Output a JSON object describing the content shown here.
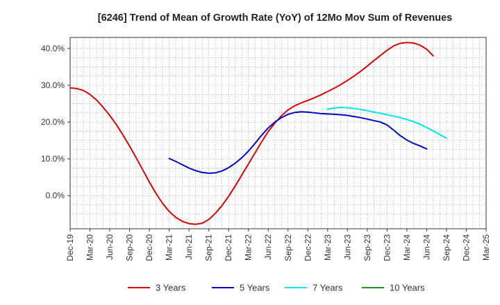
{
  "chart_data": {
    "type": "line",
    "title": "[6246]  Trend of Mean of Growth Rate (YoY) of 12Mo Mov Sum of Revenues",
    "xlabel": "",
    "ylabel": "",
    "ylim": [
      -9,
      43
    ],
    "yticks": [
      0,
      10,
      20,
      30,
      40
    ],
    "ytick_labels": [
      "0.0%",
      "10.0%",
      "20.0%",
      "30.0%",
      "40.0%"
    ],
    "x_start": "Dec-19",
    "x_end": "Mar-25",
    "xtick_labels": [
      "Dec-19",
      "Mar-20",
      "Jun-20",
      "Sep-20",
      "Dec-20",
      "Mar-21",
      "Jun-21",
      "Sep-21",
      "Dec-21",
      "Mar-22",
      "Jun-22",
      "Sep-22",
      "Dec-22",
      "Mar-23",
      "Jun-23",
      "Sep-23",
      "Dec-23",
      "Mar-24",
      "Jun-24",
      "Sep-24",
      "Dec-24",
      "Mar-25"
    ],
    "grid": true,
    "legend_position": "bottom",
    "series": [
      {
        "name": "3 Years",
        "color": "#dd0000",
        "start_month": 0,
        "values": [
          29.3,
          29.1,
          28.6,
          27.5,
          26.0,
          24.0,
          21.8,
          19.3,
          16.5,
          13.5,
          10.3,
          7.0,
          3.7,
          0.6,
          -2.1,
          -4.3,
          -5.9,
          -7.0,
          -7.6,
          -7.8,
          -7.5,
          -6.5,
          -4.8,
          -2.7,
          -0.2,
          2.6,
          5.6,
          8.6,
          11.6,
          14.6,
          17.4,
          19.7,
          21.7,
          23.3,
          24.4,
          25.2,
          25.9,
          26.6,
          27.4,
          28.3,
          29.2,
          30.2,
          31.3,
          32.5,
          33.8,
          35.2,
          36.7,
          38.1,
          39.5,
          40.7,
          41.4,
          41.6,
          41.5,
          40.9,
          39.8,
          38.0
        ]
      },
      {
        "name": "5 Years",
        "color": "#0000cc",
        "start_month": 15,
        "values": [
          10.1,
          9.3,
          8.4,
          7.5,
          6.8,
          6.3,
          6.1,
          6.2,
          6.7,
          7.6,
          8.8,
          10.3,
          12.1,
          14.2,
          16.4,
          18.4,
          20.0,
          21.2,
          22.1,
          22.6,
          22.8,
          22.7,
          22.5,
          22.3,
          22.2,
          22.1,
          22.0,
          21.8,
          21.5,
          21.2,
          20.8,
          20.4,
          20.0,
          19.2,
          17.8,
          16.3,
          15.1,
          14.2,
          13.5,
          12.7
        ]
      },
      {
        "name": "7 Years",
        "color": "#00e5ee",
        "start_month": 39,
        "values": [
          23.5,
          23.8,
          24.0,
          23.9,
          23.7,
          23.4,
          23.1,
          22.7,
          22.4,
          22.0,
          21.6,
          21.2,
          20.7,
          20.1,
          19.4,
          18.5,
          17.6,
          16.6,
          15.6
        ]
      },
      {
        "name": "10 Years",
        "color": "#228b22",
        "start_month": 0,
        "values": []
      }
    ]
  }
}
